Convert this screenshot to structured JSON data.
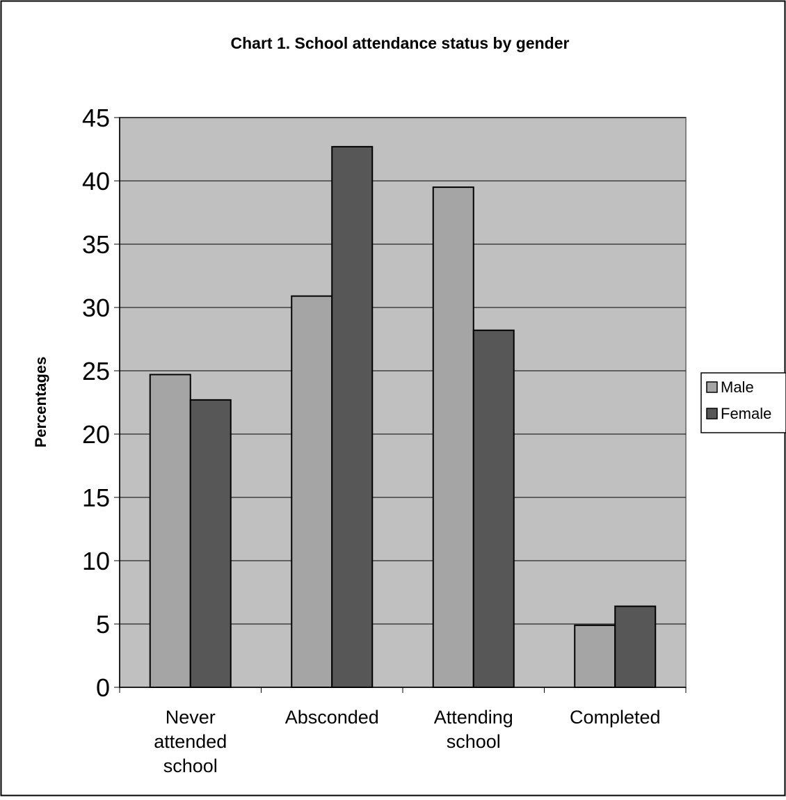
{
  "chart_data": {
    "type": "bar",
    "title": "Chart 1. School attendance status by gender",
    "xlabel": "",
    "ylabel": "Percentages",
    "categories": [
      [
        "Never",
        "attended",
        "school"
      ],
      [
        "Absconded"
      ],
      [
        "Attending",
        "school"
      ],
      [
        "Completed"
      ]
    ],
    "series": [
      {
        "name": "Male",
        "values": [
          24.7,
          30.9,
          39.5,
          4.9
        ],
        "color": "#a5a5a5"
      },
      {
        "name": "Female",
        "values": [
          22.7,
          42.7,
          28.2,
          6.4
        ],
        "color": "#575757"
      }
    ],
    "ylim": [
      0,
      45
    ],
    "yticks": [
      "0",
      "5",
      "10",
      "15",
      "20",
      "25",
      "30",
      "35",
      "40",
      "45"
    ],
    "grid": true,
    "legend": "right",
    "plot_background": "#c0c0c0"
  }
}
